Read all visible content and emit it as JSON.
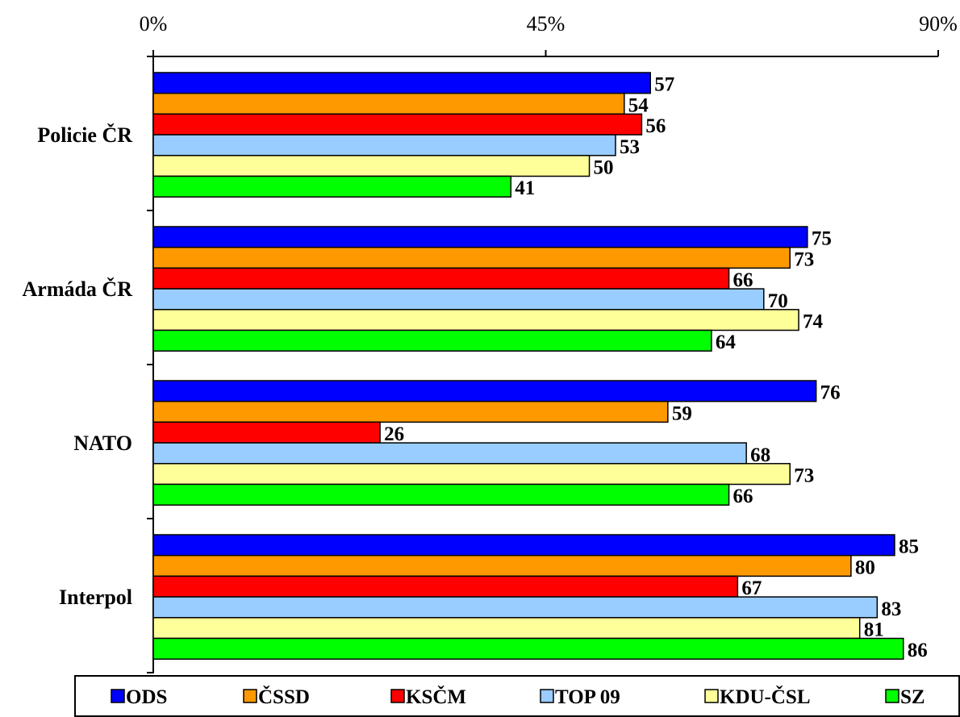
{
  "chart_data": {
    "type": "bar",
    "orientation": "horizontal",
    "categories": [
      "Policie ČR",
      "Armáda ČR",
      "NATO",
      "Interpol"
    ],
    "x_axis": {
      "position": "top",
      "range": [
        0,
        90
      ],
      "ticks": [
        {
          "value": 0,
          "label": "0%"
        },
        {
          "value": 45,
          "label": "45%"
        },
        {
          "value": 90,
          "label": "90%"
        }
      ]
    },
    "grid": false,
    "legend": "bottom",
    "series": [
      {
        "name": "ODS",
        "color": "#0000FF",
        "values": [
          57,
          75,
          76,
          85
        ]
      },
      {
        "name": "ČSSD",
        "color": "#FF9900",
        "values": [
          54,
          73,
          59,
          80
        ]
      },
      {
        "name": "KSČM",
        "color": "#FF0000",
        "values": [
          56,
          66,
          26,
          67
        ]
      },
      {
        "name": "TOP 09",
        "color": "#99CCFF",
        "values": [
          53,
          70,
          68,
          83
        ]
      },
      {
        "name": "KDU-ČSL",
        "color": "#FFFF99",
        "values": [
          50,
          74,
          73,
          81
        ]
      },
      {
        "name": "SZ",
        "color": "#00FF00",
        "values": [
          41,
          64,
          66,
          86
        ]
      }
    ]
  }
}
